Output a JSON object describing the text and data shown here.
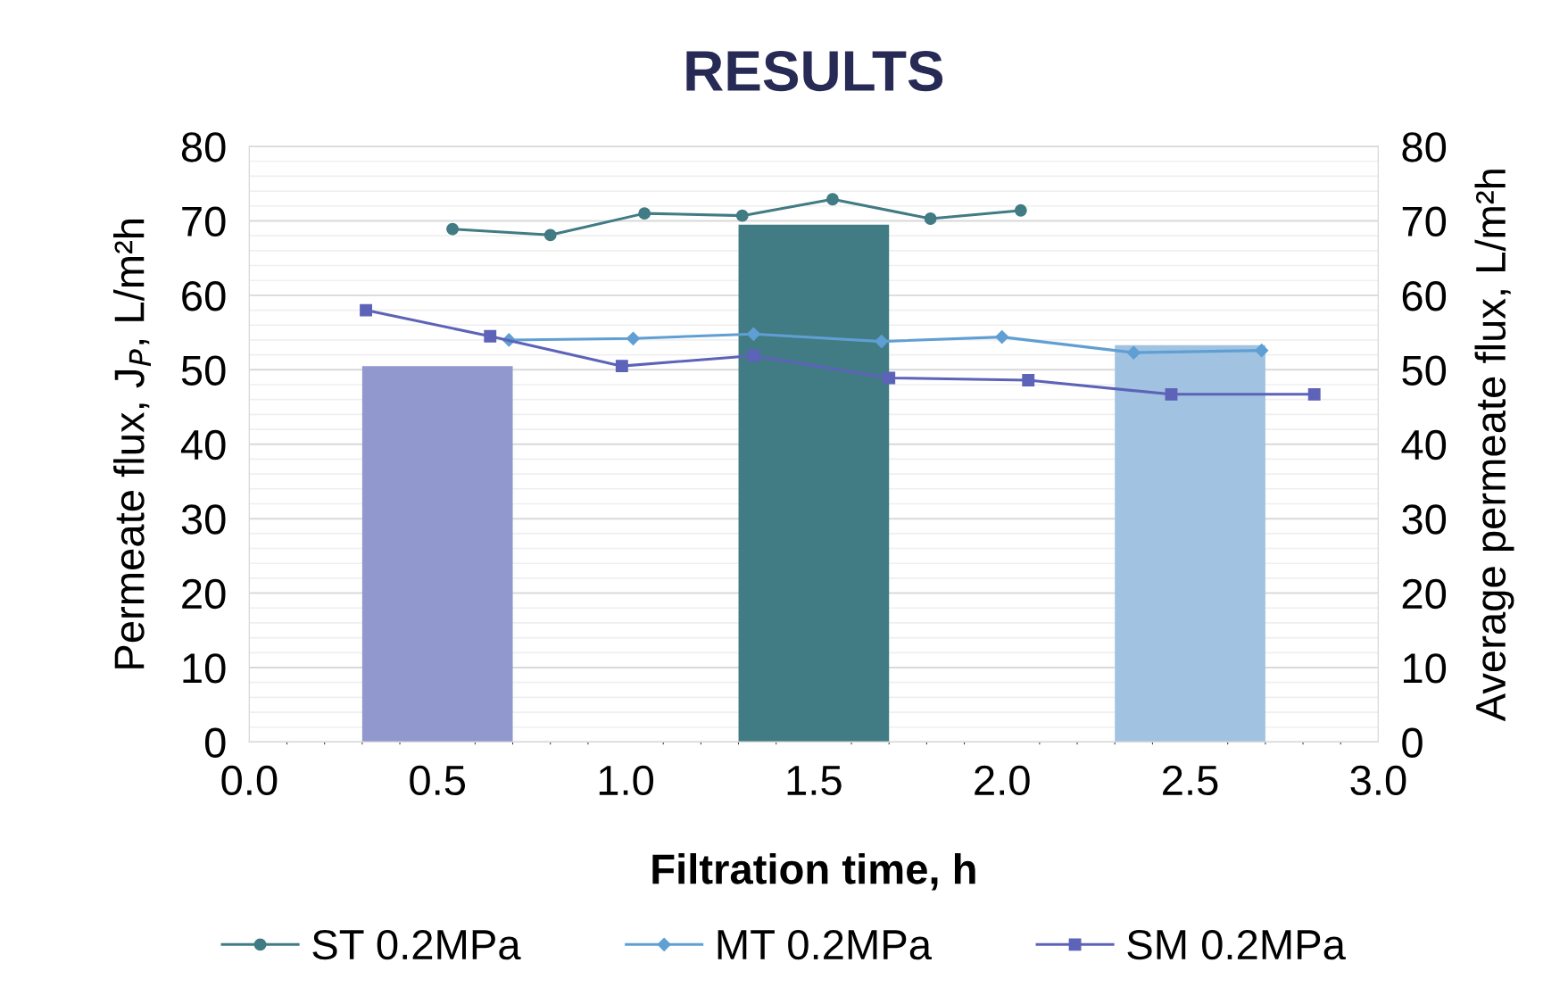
{
  "chart_data": {
    "type": "line",
    "title": "RESULTS",
    "xlabel": "Filtration time, h",
    "ylabel": "Permeate flux, J$_{P}$, L/m²h",
    "y2label": "Average permeate flux, L/m²h",
    "xlim": [
      0.0,
      3.0
    ],
    "xticks": [
      {
        "value": 0,
        "label": "0.0"
      },
      0.5,
      {
        "value": 1,
        "label": "1.0"
      },
      1.5,
      {
        "value": 2,
        "label": "2.0"
      },
      2.5,
      {
        "value": 3,
        "label": "3.0"
      }
    ],
    "ylim": [
      0,
      80
    ],
    "yticks": [
      0,
      10,
      20,
      30,
      40,
      50,
      60,
      70,
      80
    ],
    "y2lim": [
      0,
      80
    ],
    "y2ticks": [
      0,
      10,
      20,
      30,
      40,
      50,
      60,
      70,
      80
    ],
    "grid": true,
    "legend": "bottom",
    "line_style": "solid",
    "series": [
      {
        "type": "bar",
        "axis": "y2",
        "x": [
          0.5,
          1.5,
          2.5
        ],
        "values": [
          50.5,
          69.5,
          53.3
        ],
        "colors": [
          "#9098cd",
          "#417b84",
          "#a1c3e1"
        ]
      },
      {
        "name": "ST 0.2MPa",
        "color": "#417b84",
        "marker": "circle",
        "x": [
          0.54,
          0.8,
          1.05,
          1.31,
          1.55,
          1.81,
          2.05
        ],
        "values": [
          68.9,
          68.1,
          71.0,
          70.7,
          72.9,
          70.3,
          71.4
        ]
      },
      {
        "name": "MT 0.2MPa",
        "color": "#5f9fd3",
        "marker": "diamond",
        "x": [
          0.69,
          1.02,
          1.34,
          1.68,
          2.0,
          2.35,
          2.69
        ],
        "values": [
          54.0,
          54.2,
          54.8,
          53.8,
          54.4,
          52.3,
          52.6
        ]
      },
      {
        "name": "SM 0.2MPa",
        "color": "#5c63b8",
        "marker": "square",
        "x": [
          0.31,
          0.64,
          0.99,
          1.34,
          1.7,
          2.07,
          2.45,
          2.83
        ],
        "values": [
          58.0,
          54.5,
          50.5,
          51.9,
          48.9,
          48.6,
          46.7,
          46.7
        ]
      }
    ]
  }
}
